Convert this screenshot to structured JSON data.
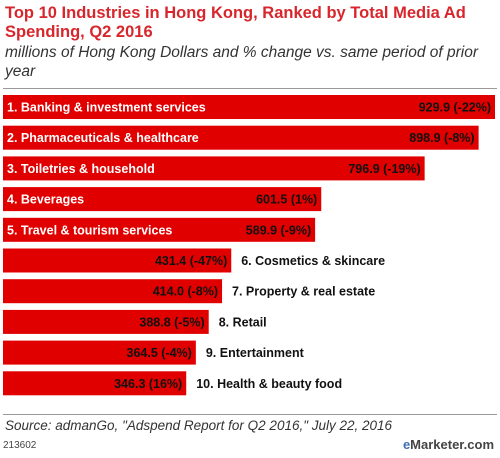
{
  "chart_data": {
    "type": "bar",
    "orientation": "horizontal",
    "title": "Top 10 Industries in Hong Kong, Ranked by Total Media Ad Spending, Q2 2016",
    "subtitle": "millions of Hong Kong Dollars and % change vs. same period of prior year",
    "categories": [
      "1. Banking & investment services",
      "2. Pharmaceuticals & healthcare",
      "3. Toiletries & household",
      "4. Beverages",
      "5. Travel & tourism services",
      "6. Cosmetics & skincare",
      "7. Property & real estate",
      "8. Retail",
      "9. Entertainment",
      "10. Health & beauty food"
    ],
    "values": [
      929.9,
      898.9,
      796.9,
      601.5,
      589.9,
      431.4,
      414.0,
      388.8,
      364.5,
      346.3
    ],
    "value_labels": [
      "929.9 (-22%)",
      "898.9 (-8%)",
      "796.9 (-19%)",
      "601.5 (1%)",
      "589.9 (-9%)",
      "431.4 (-47%)",
      "414.0 (-8%)",
      "388.8 (-5%)",
      "364.5 (-4%)",
      "346.3 (16%)"
    ],
    "pct_change": [
      -22,
      -8,
      -19,
      1,
      -9,
      -47,
      -8,
      -5,
      -4,
      16
    ],
    "bar_color": "#e00000",
    "grid": false,
    "legend": "none"
  },
  "footer": {
    "source": "Source: admanGo, \"Adspend Report for Q2 2016,\" July 22, 2016",
    "chart_id": "213602",
    "brand_prefix": "e",
    "brand_name": "Marketer",
    "brand_suffix": ".com"
  },
  "colors": {
    "title": "#d7262c",
    "bar": "#e00000",
    "brand_accent": "#3f6fb1"
  }
}
